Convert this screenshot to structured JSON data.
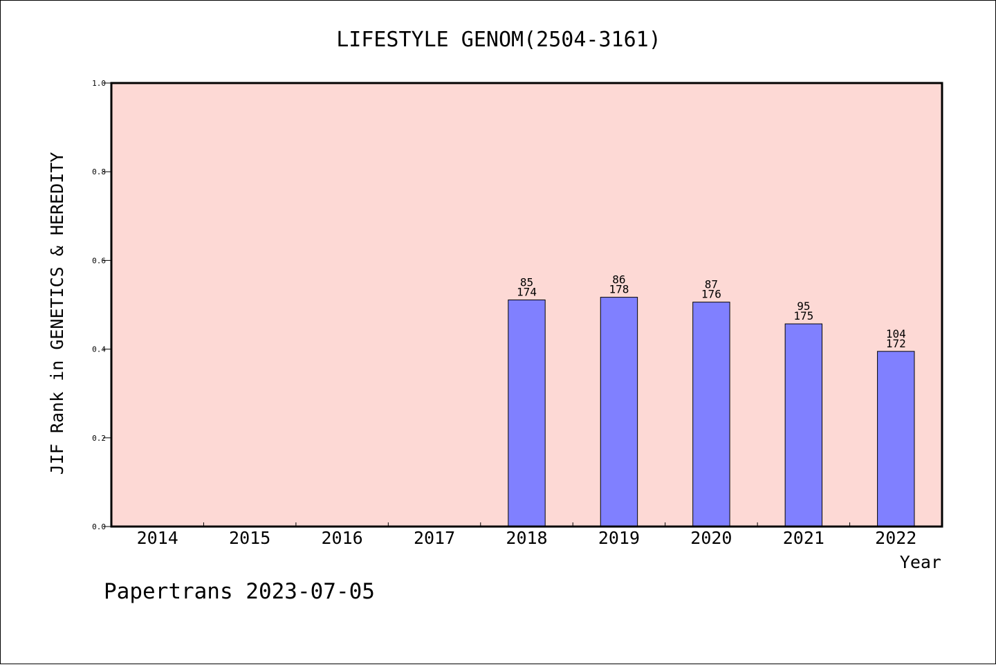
{
  "chart_data": {
    "type": "bar",
    "title": "LIFESTYLE GENOM(2504-3161)",
    "xlabel": "Year",
    "ylabel": "JIF Rank in GENETICS & HEREDITY",
    "categories": [
      "2014",
      "2015",
      "2016",
      "2017",
      "2018",
      "2019",
      "2020",
      "2021",
      "2022"
    ],
    "values": [
      null,
      null,
      null,
      null,
      0.511,
      0.517,
      0.506,
      0.457,
      0.395
    ],
    "rank_labels": [
      "",
      "",
      "",
      "",
      "85",
      "86",
      "87",
      "95",
      "104"
    ],
    "total_labels": [
      "",
      "",
      "",
      "",
      "174",
      "178",
      "176",
      "175",
      "172"
    ],
    "ylim": [
      0,
      1
    ],
    "yticks": [
      "0.0",
      "0.2",
      "0.4",
      "0.6",
      "0.8",
      "1.0"
    ],
    "grid": false,
    "colors": {
      "plot_background": "#fdd9d5",
      "bar_fill": "#8080ff",
      "bar_stroke": "#000000"
    }
  },
  "footer": {
    "text": "Papertrans 2023-07-05"
  }
}
